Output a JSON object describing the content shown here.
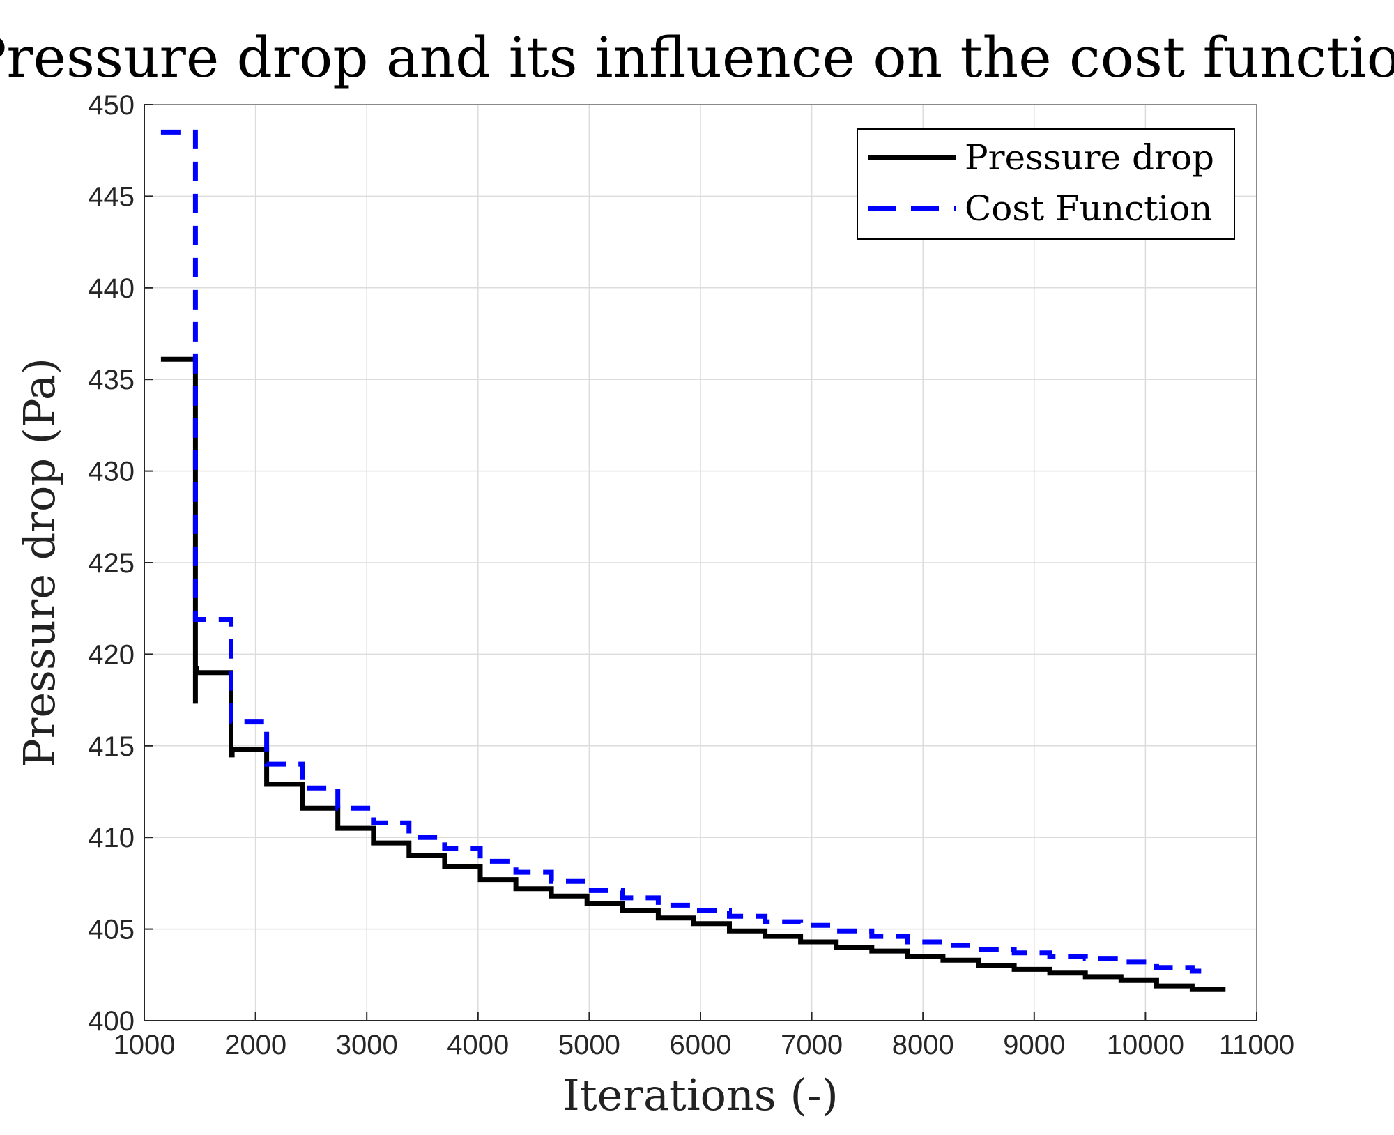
{
  "chart_data": {
    "type": "line",
    "title": "Pressure drop and its influence on the cost function",
    "xlabel": "Iterations (-)",
    "ylabel": "Pressure drop (Pa)",
    "xlim": [
      1000,
      11000
    ],
    "ylim": [
      400,
      450
    ],
    "xticks": [
      1000,
      2000,
      3000,
      4000,
      5000,
      6000,
      7000,
      8000,
      9000,
      10000,
      11000
    ],
    "yticks": [
      400,
      405,
      410,
      415,
      420,
      425,
      430,
      435,
      440,
      445,
      450
    ],
    "grid": true,
    "legend_position": "top-right",
    "series": [
      {
        "name": "Pressure drop",
        "color": "#000000",
        "style": "solid",
        "x": [
          1150,
          1460,
          1460,
          1460,
          1470,
          1470,
          1780,
          1780,
          1790,
          1790,
          2100,
          2100,
          2420,
          2420,
          2740,
          2740,
          3060,
          3060,
          3380,
          3380,
          3700,
          3700,
          4020,
          4020,
          4340,
          4340,
          4660,
          4660,
          4980,
          4980,
          5300,
          5300,
          5620,
          5620,
          5940,
          5940,
          6260,
          6260,
          6580,
          6580,
          6900,
          6900,
          7220,
          7220,
          7540,
          7540,
          7860,
          7860,
          8180,
          8180,
          8500,
          8500,
          8820,
          8820,
          9140,
          9140,
          9460,
          9460,
          9780,
          9780,
          10100,
          10100,
          10420,
          10420,
          10720
        ],
        "y": [
          436.1,
          436.1,
          417.3,
          419.2,
          419.2,
          419.0,
          419.0,
          414.5,
          414.5,
          414.8,
          414.8,
          412.9,
          412.9,
          411.6,
          411.6,
          410.5,
          410.5,
          409.7,
          409.7,
          409.0,
          409.0,
          408.4,
          408.4,
          407.7,
          407.7,
          407.2,
          407.2,
          406.8,
          406.8,
          406.4,
          406.4,
          406.0,
          406.0,
          405.6,
          405.6,
          405.3,
          405.3,
          404.9,
          404.9,
          404.6,
          404.6,
          404.3,
          404.3,
          404.0,
          404.0,
          403.8,
          403.8,
          403.5,
          403.5,
          403.3,
          403.3,
          403.0,
          403.0,
          402.8,
          402.8,
          402.6,
          402.6,
          402.4,
          402.4,
          402.2,
          402.2,
          401.9,
          401.9,
          401.7,
          401.7
        ]
      },
      {
        "name": "Cost Function",
        "color": "#0000ff",
        "style": "dashed",
        "x": [
          1150,
          1460,
          1460,
          1780,
          1780,
          2100,
          2100,
          2420,
          2420,
          2740,
          2740,
          3060,
          3060,
          3380,
          3380,
          3700,
          3700,
          4020,
          4020,
          4340,
          4340,
          4660,
          4660,
          4980,
          4980,
          5300,
          5300,
          5620,
          5620,
          5940,
          5940,
          6260,
          6260,
          6580,
          6580,
          6900,
          6900,
          7220,
          7220,
          7540,
          7540,
          7860,
          7860,
          8180,
          8180,
          8500,
          8500,
          8820,
          8820,
          9140,
          9140,
          9460,
          9460,
          9780,
          9780,
          10100,
          10100,
          10420,
          10420,
          10520
        ],
        "y": [
          448.5,
          448.5,
          421.9,
          421.9,
          416.3,
          416.3,
          414.0,
          414.0,
          412.7,
          412.7,
          411.6,
          411.6,
          410.8,
          410.8,
          410.0,
          410.0,
          409.4,
          409.4,
          408.7,
          408.7,
          408.1,
          408.1,
          407.6,
          407.6,
          407.1,
          407.1,
          406.7,
          406.7,
          406.3,
          406.3,
          406.0,
          406.0,
          405.7,
          405.7,
          405.4,
          405.4,
          405.2,
          405.2,
          404.9,
          404.9,
          404.6,
          404.6,
          404.3,
          404.3,
          404.1,
          404.1,
          403.9,
          403.9,
          403.7,
          403.7,
          403.5,
          403.5,
          403.4,
          403.4,
          403.2,
          403.2,
          402.9,
          402.9,
          402.7,
          402.7
        ]
      }
    ]
  }
}
